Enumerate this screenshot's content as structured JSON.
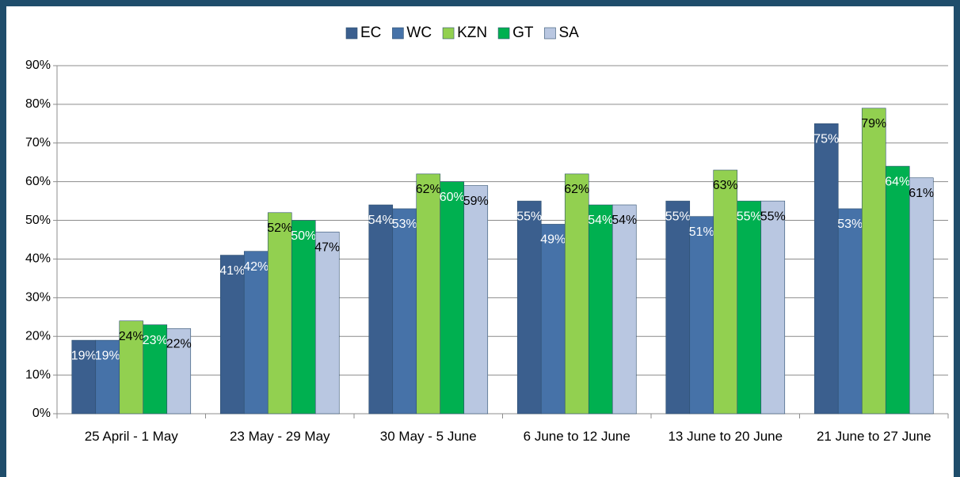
{
  "chart_data": {
    "type": "bar",
    "categories": [
      "25 April - 1 May",
      "23 May - 29 May",
      "30 May - 5 June",
      "6 June to 12 June",
      "13 June to 20 June",
      "21 June to 27 June"
    ],
    "series": [
      {
        "name": "EC",
        "color": "#3b5f8e",
        "values": [
          19,
          41,
          54,
          55,
          55,
          75
        ],
        "value_labels": [
          "19%",
          "41%",
          "54%",
          "55%",
          "55%",
          "75%"
        ]
      },
      {
        "name": "WC",
        "color": "#4672a8",
        "values": [
          19,
          42,
          53,
          49,
          51,
          53
        ],
        "value_labels": [
          "19%",
          "42%",
          "53%",
          "49%",
          "51%",
          "53%"
        ]
      },
      {
        "name": "KZN",
        "color": "#92d050",
        "values": [
          24,
          52,
          62,
          62,
          63,
          79
        ],
        "value_labels": [
          "24%",
          "52%",
          "62%",
          "62%",
          "63%",
          "79%"
        ]
      },
      {
        "name": "GT",
        "color": "#00b050",
        "values": [
          23,
          50,
          60,
          54,
          55,
          64
        ],
        "value_labels": [
          "23%",
          "50%",
          "60%",
          "54%",
          "55%",
          "64%"
        ]
      },
      {
        "name": "SA",
        "color": "#b9c7e1",
        "values": [
          22,
          47,
          59,
          54,
          55,
          61
        ],
        "value_labels": [
          "22%",
          "47%",
          "59%",
          "54%",
          "55%",
          "61%"
        ]
      }
    ],
    "ylim": [
      0,
      90
    ],
    "yticks": [
      {
        "value": 0,
        "label": "0%"
      },
      {
        "value": 10,
        "label": "10%"
      },
      {
        "value": 20,
        "label": "20%"
      },
      {
        "value": 30,
        "label": "30%"
      },
      {
        "value": 40,
        "label": "40%"
      },
      {
        "value": 50,
        "label": "50%"
      },
      {
        "value": 60,
        "label": "60%"
      },
      {
        "value": 70,
        "label": "70%"
      },
      {
        "value": 80,
        "label": "80%"
      },
      {
        "value": 90,
        "label": "90%"
      }
    ],
    "grid": true,
    "legend": "top"
  }
}
